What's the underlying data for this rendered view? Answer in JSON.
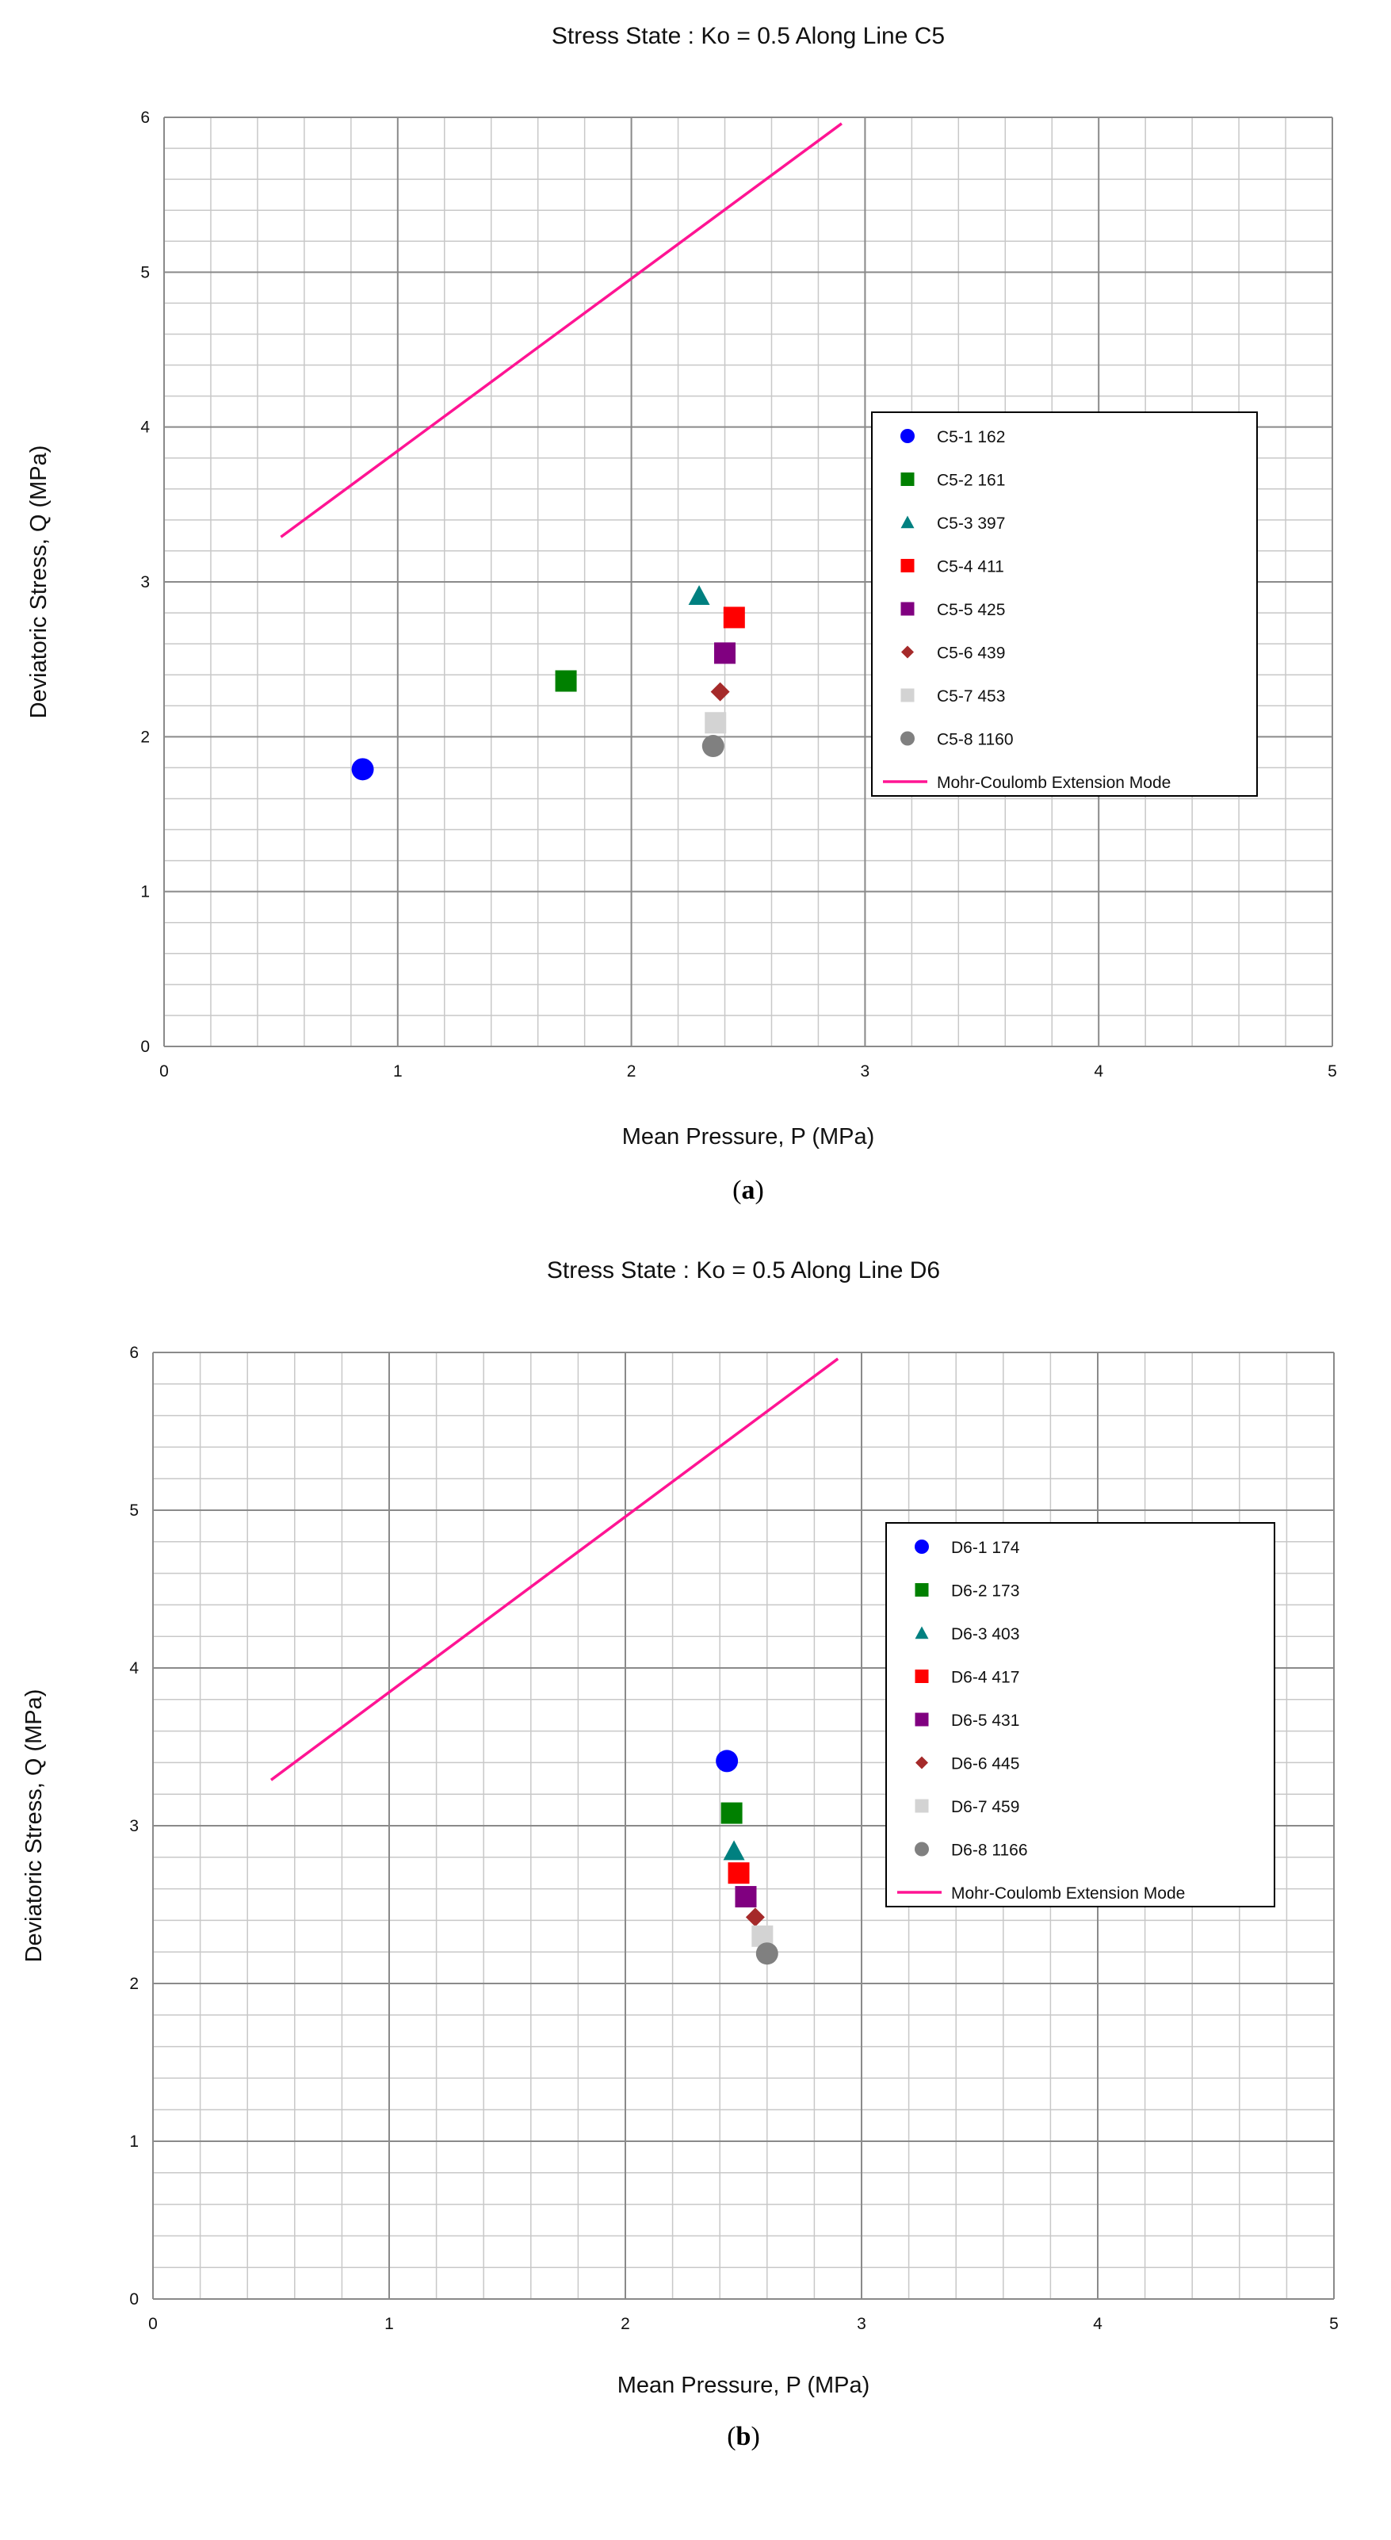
{
  "chart_data": [
    {
      "id": "a",
      "type": "scatter",
      "caption": "a",
      "title": "Stress State : Ko = 0.5   Along Line C5",
      "xlabel": "Mean Pressure,   P (MPa)",
      "ylabel": "Deviatoric Stress,   Q (MPa)",
      "xlim": [
        0,
        5
      ],
      "ylim": [
        0,
        6
      ],
      "xticks": [
        "0",
        "1",
        "2",
        "3",
        "4",
        "5"
      ],
      "yticks": [
        "0",
        "1",
        "2",
        "3",
        "4",
        "5",
        "6"
      ],
      "grid": true,
      "legend_position": "right",
      "series": [
        {
          "name": "C5-1 162",
          "marker": "circle",
          "color": "#0000ff",
          "points": [
            [
              0.85,
              1.79
            ]
          ]
        },
        {
          "name": "C5-2 161",
          "marker": "square",
          "color": "#008000",
          "points": [
            [
              1.72,
              2.36
            ]
          ]
        },
        {
          "name": "C5-3 397",
          "marker": "triangle",
          "color": "#008080",
          "points": [
            [
              2.29,
              2.91
            ]
          ]
        },
        {
          "name": "C5-4 411",
          "marker": "square",
          "color": "#ff0000",
          "points": [
            [
              2.44,
              2.77
            ]
          ]
        },
        {
          "name": "C5-5 425",
          "marker": "square",
          "color": "#800080",
          "points": [
            [
              2.4,
              2.54
            ]
          ]
        },
        {
          "name": "C5-6 439",
          "marker": "diamond",
          "color": "#a52a2a",
          "points": [
            [
              2.38,
              2.29
            ]
          ]
        },
        {
          "name": "C5-7 453",
          "marker": "square",
          "color": "#d3d3d3",
          "points": [
            [
              2.36,
              2.09
            ]
          ]
        },
        {
          "name": "C5-8 1160",
          "marker": "circle",
          "color": "#808080",
          "points": [
            [
              2.35,
              1.94
            ]
          ]
        }
      ],
      "line": {
        "name": "Mohr-Coulomb  Extension Mode",
        "color": "#ff1493",
        "points": [
          [
            0.5,
            3.29
          ],
          [
            2.9,
            5.96
          ]
        ]
      }
    },
    {
      "id": "b",
      "type": "scatter",
      "caption": "b",
      "title": "Stress State : Ko = 0.5   Along Line D6",
      "xlabel": "Mean Pressure,   P (MPa)",
      "ylabel": "Deviatoric Stress,   Q (MPa)",
      "xlim": [
        0,
        5
      ],
      "ylim": [
        0,
        6
      ],
      "xticks": [
        "0",
        "1",
        "2",
        "3",
        "4",
        "5"
      ],
      "yticks": [
        "0",
        "1",
        "2",
        "3",
        "4",
        "5",
        "6"
      ],
      "grid": true,
      "legend_position": "right",
      "series": [
        {
          "name": "D6-1 174",
          "marker": "circle",
          "color": "#0000ff",
          "points": [
            [
              2.43,
              3.41
            ]
          ]
        },
        {
          "name": "D6-2 173",
          "marker": "square",
          "color": "#008000",
          "points": [
            [
              2.45,
              3.08
            ]
          ]
        },
        {
          "name": "D6-3 403",
          "marker": "triangle",
          "color": "#008080",
          "points": [
            [
              2.46,
              2.84
            ]
          ]
        },
        {
          "name": "D6-4 417",
          "marker": "square",
          "color": "#ff0000",
          "points": [
            [
              2.48,
              2.7
            ]
          ]
        },
        {
          "name": "D6-5 431",
          "marker": "square",
          "color": "#800080",
          "points": [
            [
              2.51,
              2.55
            ]
          ]
        },
        {
          "name": "D6-6 445",
          "marker": "diamond",
          "color": "#a52a2a",
          "points": [
            [
              2.55,
              2.42
            ]
          ]
        },
        {
          "name": "D6-7 459",
          "marker": "square",
          "color": "#d3d3d3",
          "points": [
            [
              2.58,
              2.3
            ]
          ]
        },
        {
          "name": "D6-8 1166",
          "marker": "circle",
          "color": "#808080",
          "points": [
            [
              2.6,
              2.19
            ]
          ]
        }
      ],
      "line": {
        "name": "Mohr-Coulomb  Extension Mode",
        "color": "#ff1493",
        "points": [
          [
            0.5,
            3.29
          ],
          [
            2.9,
            5.96
          ]
        ]
      }
    }
  ]
}
